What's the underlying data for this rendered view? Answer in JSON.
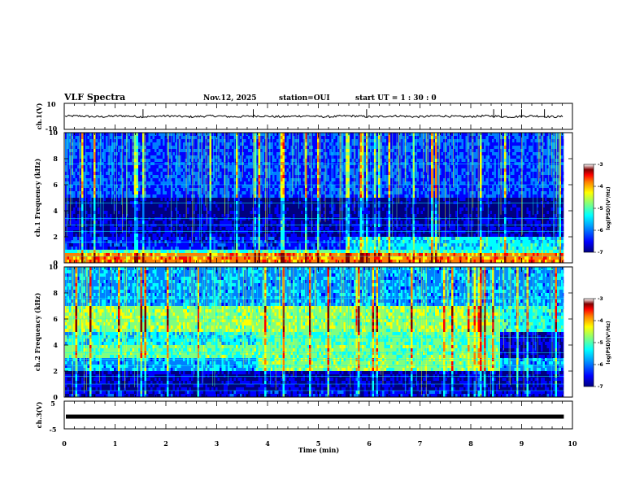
{
  "header": {
    "title": "VLF Spectra",
    "date": "Nov.12, 2025",
    "station": "station=OUI",
    "start": "start  UT =   1 : 30 : 0"
  },
  "chart_data": [
    {
      "type": "line",
      "name": "ch1-waveform",
      "ylabel": "ch.1(V)",
      "ylim": [
        -10,
        10
      ],
      "y_ticks": [
        "10",
        "-10"
      ],
      "level": 0,
      "spike_times_min": [
        1.55,
        3.72,
        5.95,
        8.45,
        8.6,
        9.0,
        9.45
      ]
    },
    {
      "type": "heatmap",
      "name": "ch1-spectrogram",
      "ylabel": "ch.1 Frequency (kHz)",
      "ylim": [
        0,
        10
      ],
      "y_ticks": [
        "0",
        "2",
        "4",
        "6",
        "8",
        "10"
      ],
      "band_change_time_min": 5.55
    },
    {
      "type": "heatmap",
      "name": "ch2-spectrogram",
      "ylabel": "ch.2 Frequency (kHz)",
      "ylim": [
        0,
        10
      ],
      "y_ticks": [
        "0",
        "2",
        "4",
        "6",
        "8",
        "10"
      ],
      "band_change_times_min": [
        3.75,
        8.55
      ]
    },
    {
      "type": "line",
      "name": "ch3-waveform",
      "ylabel": "ch.3(V)",
      "ylim": [
        -5,
        5
      ],
      "y_ticks": [
        "5",
        "-5"
      ],
      "level": -0.6
    }
  ],
  "x_axis": {
    "label": "Time  (min)",
    "range": [
      0,
      10
    ],
    "ticks": [
      "0",
      "1",
      "2",
      "3",
      "4",
      "5",
      "6",
      "7",
      "8",
      "9",
      "10"
    ],
    "data_end": 9.83
  },
  "colorbar": {
    "label": "log(PSD)(V²/Hz)",
    "ticks": [
      "-3",
      "-4",
      "-5",
      "-6",
      "-7"
    ],
    "range": [
      -7,
      -3
    ],
    "colors": [
      "#00007f",
      "#0000ff",
      "#007fff",
      "#00ffff",
      "#7fff7f",
      "#ffff00",
      "#ff7f00",
      "#ff0000",
      "#7f0000",
      "#ffffff"
    ]
  }
}
